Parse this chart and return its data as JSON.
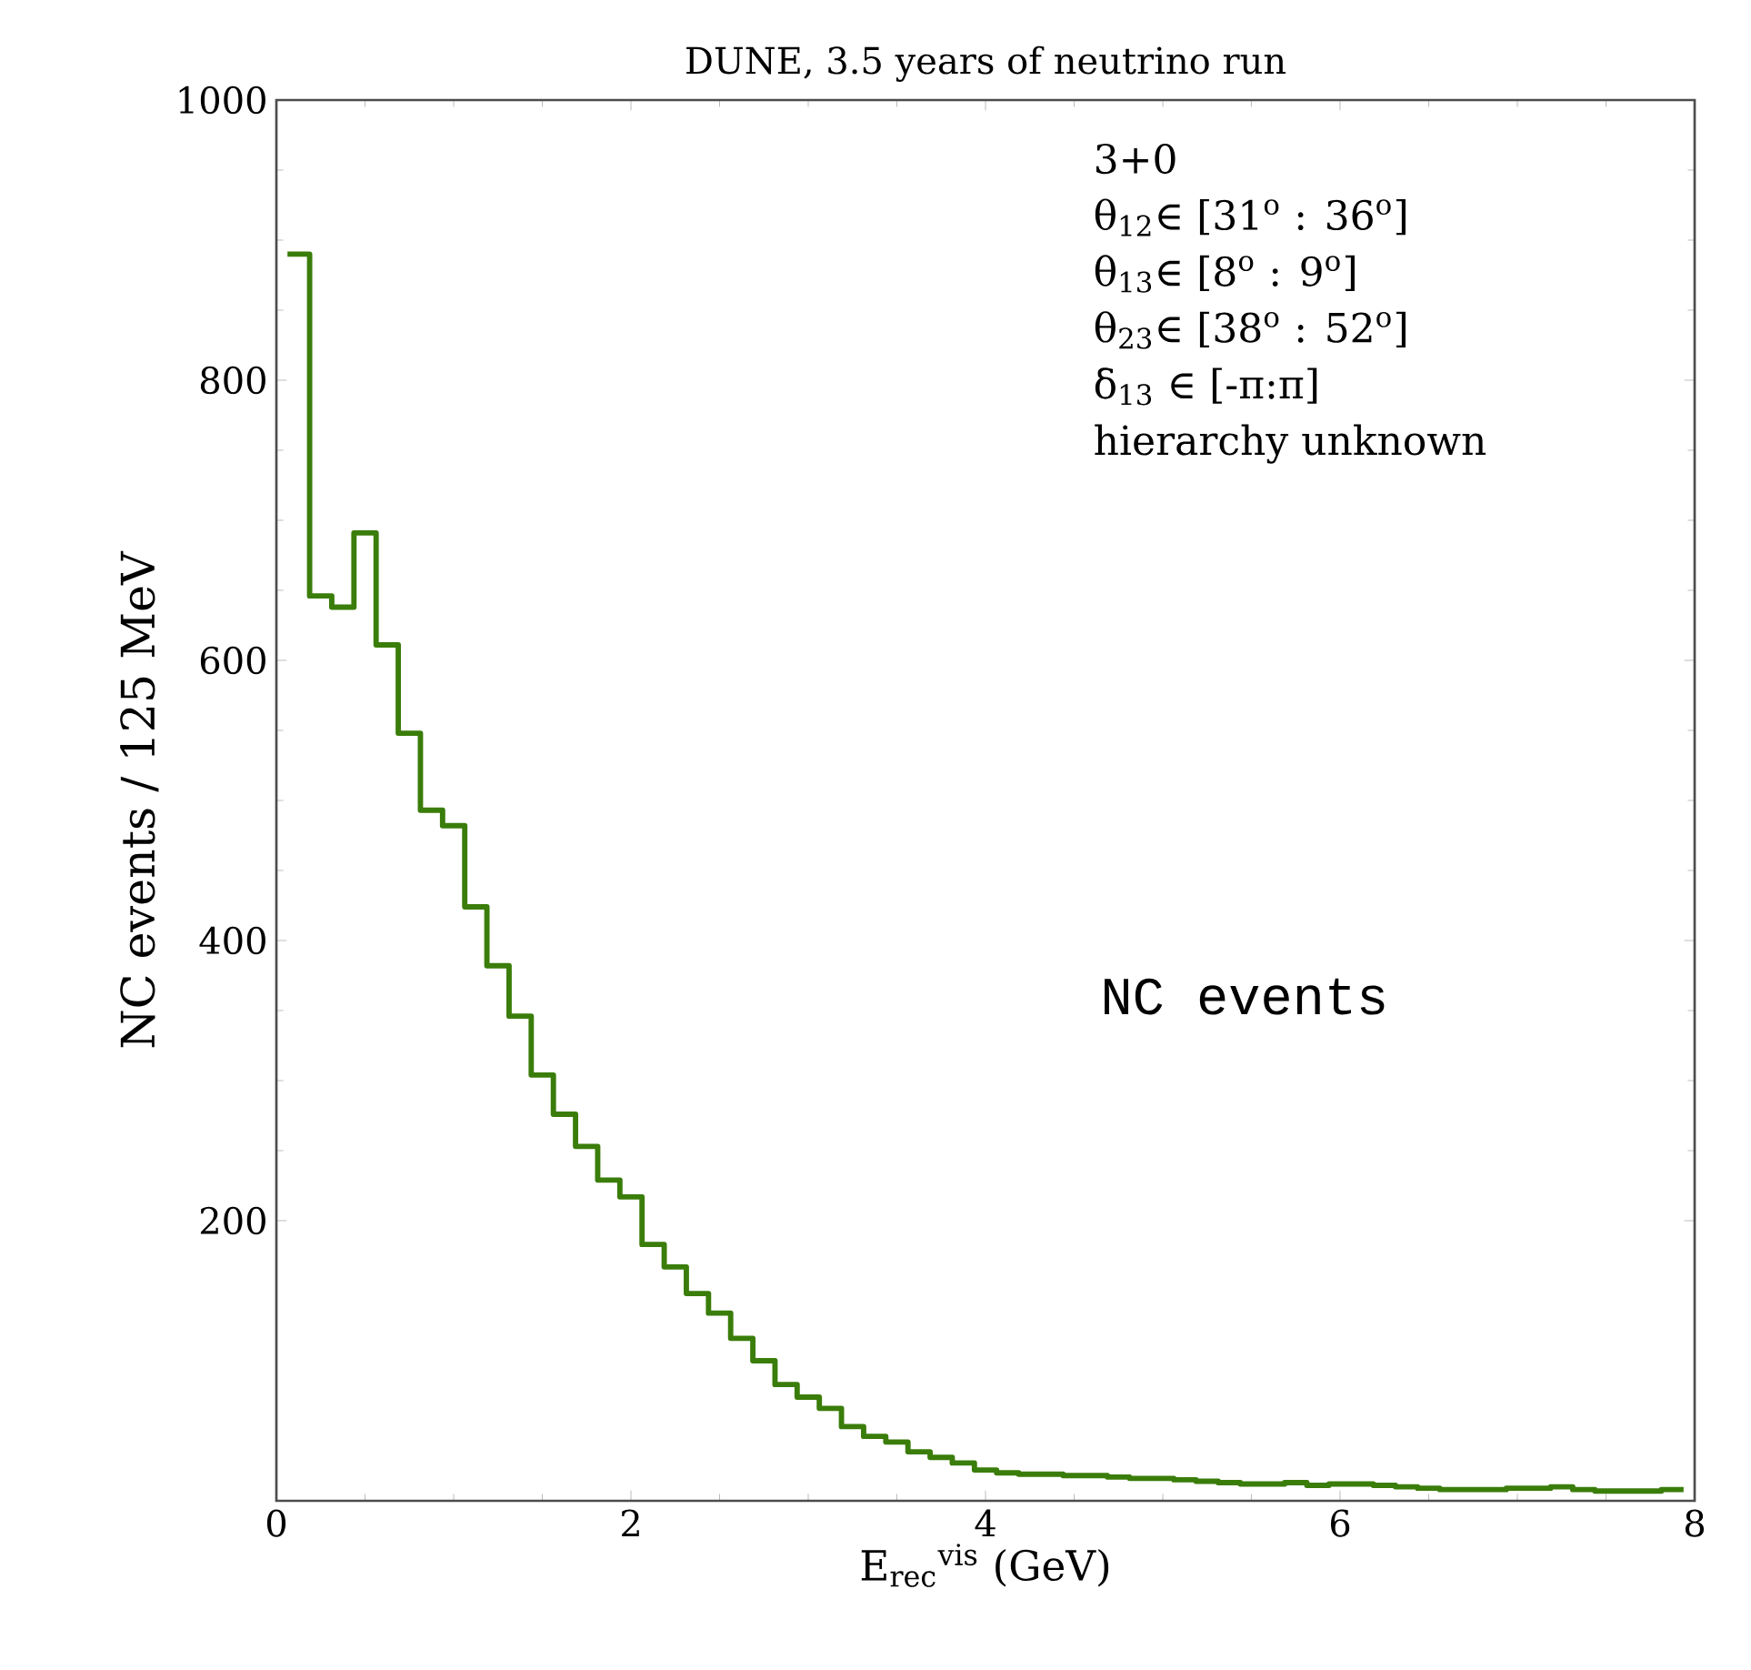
{
  "chart_data": {
    "type": "histogram",
    "title": "DUNE, 3.5 years of neutrino run",
    "xlabel": "E$_{rec}$$^{vis}$ (GeV)",
    "ylabel": "NC events / 125 MeV",
    "bins": [
      0.0625,
      0.1875,
      0.3125,
      0.4375,
      0.5625,
      0.6875,
      0.8125,
      0.9375,
      1.0625,
      1.1875,
      1.3125,
      1.4375,
      1.5625,
      1.6875,
      1.8125,
      1.9375,
      2.0625,
      2.1875,
      2.3125,
      2.4375,
      2.5625,
      2.6875,
      2.8125,
      2.9375,
      3.0625,
      3.1875,
      3.3125,
      3.4375,
      3.5625,
      3.6875,
      3.8125,
      3.9375,
      4.0625,
      4.1875,
      4.3125,
      4.4375,
      4.5625,
      4.6875,
      4.8125,
      4.9375,
      5.0625,
      5.1875,
      5.3125,
      5.4375,
      5.5625,
      5.6875,
      5.8125,
      5.9375,
      6.0625,
      6.1875,
      6.3125,
      6.4375,
      6.5625,
      6.6875,
      6.8125,
      6.9375,
      7.0625,
      7.1875,
      7.3125,
      7.4375,
      7.5625,
      7.6875,
      7.8125,
      7.9375
    ],
    "values": [
      890,
      646,
      638,
      691,
      611,
      548,
      493,
      482,
      424,
      382,
      346,
      304,
      276,
      253,
      229,
      217,
      183,
      167,
      148,
      134,
      116,
      100,
      83,
      74,
      66,
      53,
      46,
      42,
      35,
      31,
      27,
      22,
      20,
      19,
      19,
      18,
      18,
      17,
      16,
      16,
      15,
      14,
      13,
      12,
      12,
      13,
      11,
      12,
      12,
      11,
      10,
      9,
      8,
      8,
      8,
      9,
      9,
      10,
      8,
      7,
      7,
      7,
      8
    ],
    "color": "#3a7d0a",
    "xlim": [
      0,
      8
    ],
    "ylim": [
      0,
      1000
    ],
    "xticks": [
      0,
      2,
      4,
      6,
      8
    ],
    "yticks": [
      200,
      400,
      600,
      800,
      1000
    ],
    "annotations": [
      "3+0",
      "θ$_{12}$∈ [31$^{o}$ : 36$^{o}$]",
      "θ$_{13}$∈ [8$^{o}$ : 9$^{o}$]",
      "θ$_{23}$∈ [38$^{o}$ : 52$^{o}$]",
      "δ$_{13}$ ∈ [-π:π]",
      "hierarchy unknown",
      "NC events"
    ]
  }
}
